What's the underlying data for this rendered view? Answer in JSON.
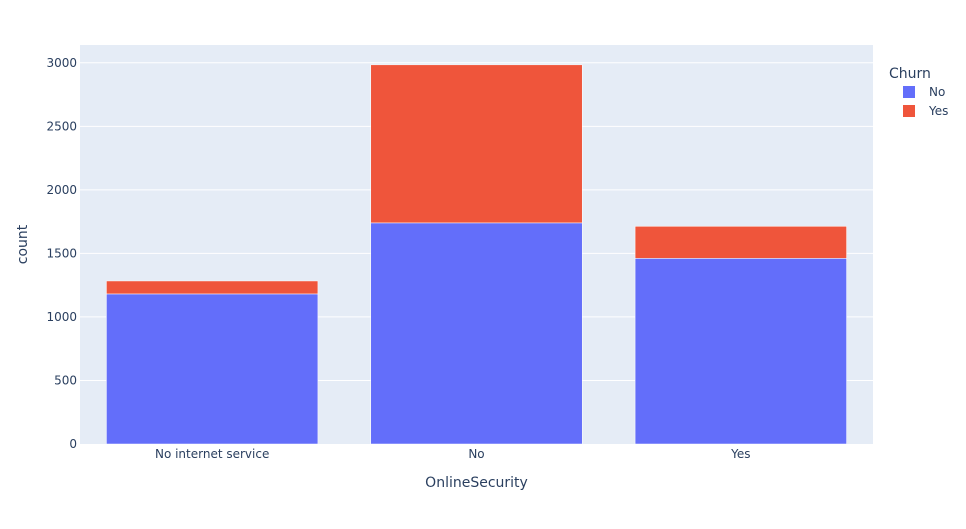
{
  "chart_data": {
    "type": "bar",
    "barmode": "stack",
    "title": "",
    "xlabel": "OnlineSecurity",
    "ylabel": "count",
    "categories": [
      "No internet service",
      "No",
      "Yes"
    ],
    "series": [
      {
        "name": "No",
        "values": [
          1181,
          1740,
          1461
        ]
      },
      {
        "name": "Yes",
        "values": [
          102,
          1244,
          252
        ]
      }
    ],
    "ylim": [
      0,
      3140
    ],
    "yticks": [
      0,
      500,
      1000,
      1500,
      2000,
      2500,
      3000
    ],
    "grid": true,
    "legend": {
      "title": "Churn",
      "placement": "top-right"
    },
    "colors": {
      "No": "#636efa",
      "Yes": "#ef553b",
      "plot_bg": "#e5ecf6",
      "grid": "#ffffff",
      "text": "#2a3f5f"
    }
  }
}
